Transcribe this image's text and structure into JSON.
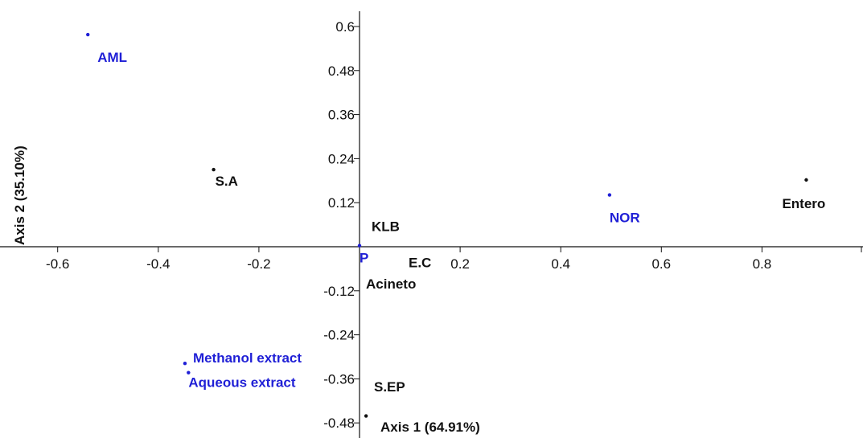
{
  "chart_data": {
    "type": "scatter",
    "xlabel": "Axis 1 (64.91%)",
    "ylabel": "Axis 2 (35.10%)",
    "xlim": [
      -0.7,
      1.0
    ],
    "ylim": [
      -0.5,
      0.64
    ],
    "x_ticks": [
      "-0.6",
      "-0.4",
      "-0.2",
      "0.2",
      "0.4",
      "0.6",
      "0.8"
    ],
    "y_ticks": [
      "0.6",
      "0.48",
      "0.36",
      "0.24",
      "0.12",
      "-0.12",
      "-0.24",
      "-0.36",
      "-0.48"
    ],
    "colors": {
      "treatment": "#1f1fd6",
      "bacteria": "#111111"
    },
    "points": [
      {
        "label": "AML",
        "x": -0.54,
        "y": 0.578,
        "group": "treatment"
      },
      {
        "label": "NOR",
        "x": 0.497,
        "y": 0.141,
        "group": "treatment"
      },
      {
        "label": "P",
        "x": 0.0,
        "y": 0.003,
        "group": "treatment"
      },
      {
        "label": "Methanol extract",
        "x": -0.347,
        "y": -0.318,
        "group": "treatment"
      },
      {
        "label": "Aqueous extract",
        "x": -0.34,
        "y": -0.343,
        "group": "treatment"
      },
      {
        "label": "S.A",
        "x": -0.29,
        "y": 0.21,
        "group": "bacteria"
      },
      {
        "label": "Entero",
        "x": 0.888,
        "y": 0.182,
        "group": "bacteria"
      },
      {
        "label": "KLB",
        "x": 0.0,
        "y": 0.005,
        "group": "bacteria"
      },
      {
        "label": "E.C",
        "x": 0.0,
        "y": 0.001,
        "group": "bacteria"
      },
      {
        "label": "Acineto",
        "x": 0.0,
        "y": -0.002,
        "group": "bacteria"
      },
      {
        "label": "S.EP",
        "x": 0.0,
        "y": -0.004,
        "group": "bacteria"
      },
      {
        "label": "",
        "x": 0.013,
        "y": -0.461,
        "group": "bacteria"
      }
    ]
  }
}
